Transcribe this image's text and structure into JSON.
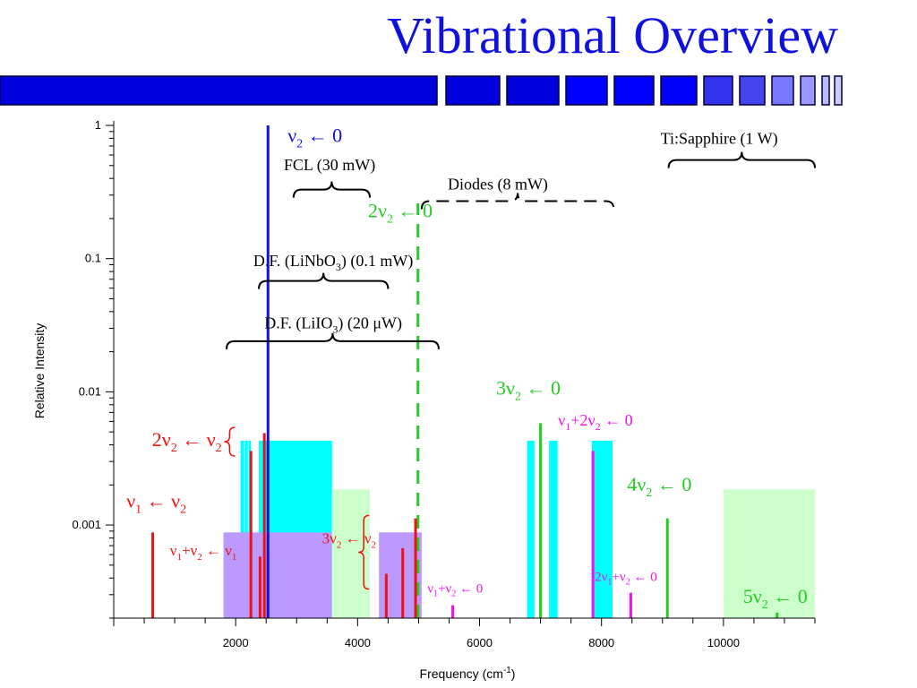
{
  "slide": {
    "title": "Vibrational Overview",
    "accent": "#1111dd",
    "banner_colors": [
      "#0000dd",
      "#0000dd",
      "#0000dd",
      "#0000ff",
      "#0000ff",
      "#0000ff",
      "#3333ee",
      "#4444ee",
      "#7777ff",
      "#9999ff",
      "#bbbbff",
      "#ccccff"
    ]
  },
  "chart_data": {
    "type": "bar",
    "xlabel": "Frequency (cm",
    "xlabel_sup": "-1",
    "xlabel_end": ")",
    "ylabel": "Relative Intensity",
    "xlim": [
      0,
      11500
    ],
    "ylim": [
      0.0002,
      1.0
    ],
    "yscale": "log",
    "xticks": [
      2000,
      4000,
      6000,
      8000,
      10000
    ],
    "yticks": [
      {
        "value": 1,
        "label": "1"
      },
      {
        "value": 0.1,
        "label": "0.1"
      },
      {
        "value": 0.01,
        "label": "0.01"
      },
      {
        "value": 0.001,
        "label": "0.001"
      }
    ],
    "colors": {
      "cyan": "#00ffff",
      "purple": "#bb99ff",
      "lightgreen": "#ccffcc",
      "blue": "#1111dd",
      "green": "#22cc22",
      "red": "#ee1111",
      "magenta": "#ee11ee"
    },
    "regions": [
      {
        "x0": 2080,
        "x1": 2140,
        "ytop": 0.0043,
        "color": "cyan"
      },
      {
        "x0": 2150,
        "x1": 2200,
        "ytop": 0.0043,
        "color": "cyan"
      },
      {
        "x0": 2210,
        "x1": 2250,
        "ytop": 0.0043,
        "color": "cyan"
      },
      {
        "x0": 2380,
        "x1": 3580,
        "ytop": 0.0043,
        "color": "cyan"
      },
      {
        "x0": 6780,
        "x1": 6900,
        "ytop": 0.0043,
        "color": "cyan"
      },
      {
        "x0": 7140,
        "x1": 7280,
        "ytop": 0.0043,
        "color": "cyan"
      },
      {
        "x0": 7840,
        "x1": 8180,
        "ytop": 0.0043,
        "color": "cyan"
      },
      {
        "x0": 1800,
        "x1": 3580,
        "ytop": 0.00088,
        "color": "purple"
      },
      {
        "x0": 4350,
        "x1": 5050,
        "ytop": 0.00088,
        "color": "purple"
      },
      {
        "x0": 3580,
        "x1": 4200,
        "ytop": 0.00185,
        "color": "lightgreen"
      },
      {
        "x0": 10000,
        "x1": 11500,
        "ytop": 0.00185,
        "color": "lightgreen"
      }
    ],
    "lines": [
      {
        "x": 2530,
        "y": 1.0,
        "color": "blue",
        "width": 3
      },
      {
        "x": 4990,
        "y": 0.26,
        "color": "green",
        "width": 3,
        "dashed": true
      },
      {
        "x": 7000,
        "y": 0.0058,
        "color": "green",
        "width": 3
      },
      {
        "x": 9080,
        "y": 0.00112,
        "color": "green",
        "width": 3
      },
      {
        "x": 10880,
        "y": 0.00022,
        "color": "green",
        "width": 3
      },
      {
        "x": 640,
        "y": 0.00088,
        "color": "red",
        "width": 3
      },
      {
        "x": 2250,
        "y": 0.0036,
        "color": "red",
        "width": 3
      },
      {
        "x": 2400,
        "y": 0.00058,
        "color": "red",
        "width": 3
      },
      {
        "x": 2470,
        "y": 0.0049,
        "color": "red",
        "width": 3
      },
      {
        "x": 4470,
        "y": 0.00043,
        "color": "red",
        "width": 3
      },
      {
        "x": 4740,
        "y": 0.00067,
        "color": "red",
        "width": 3
      },
      {
        "x": 4950,
        "y": 0.00112,
        "color": "red",
        "width": 3
      },
      {
        "x": 5560,
        "y": 0.00025,
        "color": "magenta",
        "width": 3
      },
      {
        "x": 7860,
        "y": 0.0036,
        "color": "magenta",
        "width": 3
      },
      {
        "x": 8480,
        "y": 0.00031,
        "color": "magenta",
        "width": 3
      }
    ],
    "annotations": [
      {
        "text": "ν₂ ← 0",
        "x": 3300,
        "y": 0.75,
        "color": "blue",
        "size": 22
      },
      {
        "text": "2ν₂ ← 0",
        "x": 4700,
        "y": 0.205,
        "color": "green",
        "size": 22
      },
      {
        "text": "3ν₂ ← 0",
        "x": 6800,
        "y": 0.0095,
        "color": "green",
        "size": 22
      },
      {
        "text": "4ν₂ ← 0",
        "x": 8950,
        "y": 0.0018,
        "color": "green",
        "size": 22
      },
      {
        "text": "5ν₂ ← 0",
        "x": 10850,
        "y": 0.00026,
        "color": "green",
        "size": 22
      },
      {
        "text": "ν₁+2ν₂ ← 0",
        "x": 7900,
        "y": 0.0056,
        "color": "magenta",
        "size": 18
      },
      {
        "text": "ν₁+ν₂ ← 0",
        "x": 5600,
        "y": 0.00031,
        "color": "magenta",
        "size": 15
      },
      {
        "text": "2ν₁+ν₂ ← 0",
        "x": 8400,
        "y": 0.00038,
        "color": "magenta",
        "size": 15
      },
      {
        "text": "2ν₂ ← ν₂",
        "x": 1200,
        "y": 0.0039,
        "color": "red",
        "size": 22
      },
      {
        "text": "ν₁ ← ν₂",
        "x": 700,
        "y": 0.00135,
        "color": "red",
        "size": 22
      },
      {
        "text": "ν₁+ν₂ ← ν₁",
        "x": 1470,
        "y": 0.00059,
        "color": "red",
        "size": 17
      },
      {
        "text": "3ν₂ ← ν₂",
        "x": 3860,
        "y": 0.00073,
        "color": "red",
        "size": 17
      },
      {
        "text": "FCL (30 mW)",
        "x": 3540,
        "y": 0.46,
        "color": "black",
        "size": 18
      },
      {
        "text": "Diodes (8 mW)",
        "x": 6300,
        "y": 0.33,
        "color": "black",
        "size": 18
      },
      {
        "text": "Ti:Sapphire (1 W)",
        "x": 9930,
        "y": 0.73,
        "color": "black",
        "size": 18
      },
      {
        "text": "D.F. (LiNbO₃) (0.1 mW)",
        "x": 3600,
        "y": 0.088,
        "color": "black",
        "size": 18
      },
      {
        "text": "D.F. (LiIO₃) (20 μW)",
        "x": 3600,
        "y": 0.03,
        "color": "black",
        "size": 18
      }
    ],
    "braces": [
      {
        "x0": 2950,
        "x1": 4200,
        "y": 0.33,
        "dir": "up"
      },
      {
        "x0": 5050,
        "x1": 8200,
        "y": 0.27,
        "dir": "up",
        "dashed": true
      },
      {
        "x0": 9100,
        "x1": 11500,
        "y": 0.55,
        "dir": "up"
      },
      {
        "x0": 2380,
        "x1": 4500,
        "y": 0.068,
        "dir": "up"
      },
      {
        "x0": 1850,
        "x1": 5330,
        "y": 0.024,
        "dir": "up"
      }
    ],
    "vbraces": [
      {
        "x": 1900,
        "y0": 0.0033,
        "y1": 0.0054,
        "color": "red"
      },
      {
        "x": 4100,
        "y0": 0.00033,
        "y1": 0.00118,
        "color": "red"
      }
    ]
  }
}
